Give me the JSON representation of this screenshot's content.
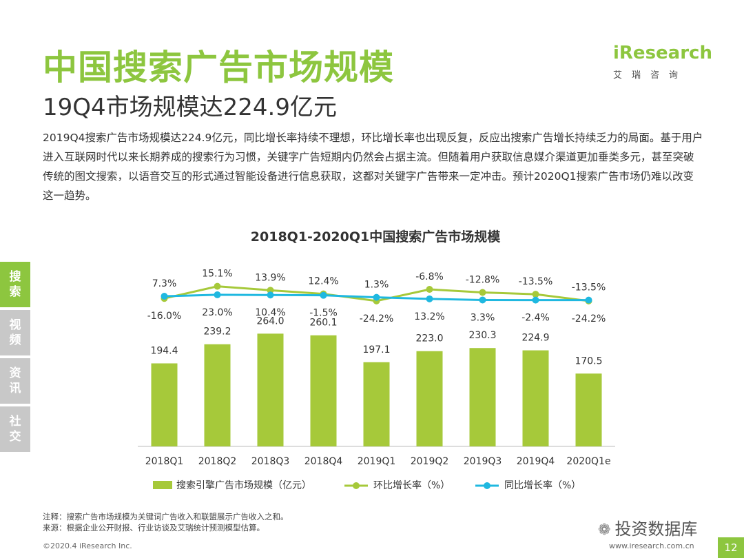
{
  "header": {
    "title": "中国搜索广告市场规模",
    "subtitle": "19Q4市场规模达224.9亿元"
  },
  "logo": {
    "name": "iResearch",
    "sub": "艾瑞咨询"
  },
  "body_text": "2019Q4搜索广告市场规模达224.9亿元，同比增长率持续不理想，环比增长率也出现反复，反应出搜索广告增长持续乏力的局面。基于用户进入互联网时代以来长期养成的搜索行为习惯，关键字广告短期内仍然会占据主流。但随着用户获取信息媒介渠道更加垂类多元，甚至突破传统的图文搜索，以语音交互的形式通过智能设备进行信息获取，这都对关键字广告带来一定冲击。预计2020Q1搜索广告市场仍难以改变这一趋势。",
  "side_nav": [
    {
      "label": "搜索",
      "active": true
    },
    {
      "label": "视频",
      "active": false
    },
    {
      "label": "资讯",
      "active": false
    },
    {
      "label": "社交",
      "active": false
    }
  ],
  "chart_data": {
    "type": "bar",
    "title": "2018Q1-2020Q1中国搜索广告市场规模",
    "categories": [
      "2018Q1",
      "2018Q2",
      "2018Q3",
      "2018Q4",
      "2019Q1",
      "2019Q2",
      "2019Q3",
      "2019Q4",
      "2020Q1e"
    ],
    "series": [
      {
        "name": "搜索引擎广告市场规模（亿元）",
        "type": "bar",
        "values": [
          194.4,
          239.2,
          264.0,
          260.1,
          197.1,
          223.0,
          230.3,
          224.9,
          170.5
        ],
        "labels": [
          "194.4",
          "239.2",
          "264.0",
          "260.1",
          "197.1",
          "223.0",
          "230.3",
          "224.9",
          "170.5"
        ],
        "color": "#a6c93a"
      },
      {
        "name": "环比增长率（%）",
        "type": "line",
        "values": [
          -16.0,
          23.0,
          10.4,
          -1.5,
          -24.2,
          13.2,
          3.3,
          -2.4,
          -24.2
        ],
        "labels": [
          "-16.0%",
          "23.0%",
          "10.4%",
          "-1.5%",
          "-24.2%",
          "13.2%",
          "3.3%",
          "-2.4%",
          "-24.2%"
        ],
        "color": "#a6c93a"
      },
      {
        "name": "同比增长率（%）",
        "type": "line",
        "values": [
          7.3,
          15.1,
          13.9,
          12.4,
          1.3,
          -6.8,
          -12.8,
          -13.5,
          -13.5
        ],
        "labels": [
          "7.3%",
          "15.1%",
          "13.9%",
          "12.4%",
          "1.3%",
          "-6.8%",
          "-12.8%",
          "-13.5%",
          "-13.5%"
        ],
        "color": "#1fb8e0"
      }
    ],
    "legend_placement": "bottom",
    "grid": false
  },
  "notes": {
    "note": "注释：搜索广告市场规模为关键词广告收入和联盟展示广告收入之和。",
    "source": "来源：根据企业公开财报、行业访谈及艾瑞统计预测模型估算。"
  },
  "footer": {
    "copyright": "©2020.4 iResearch Inc.",
    "website": "www.iresearch.com.cn",
    "page": "12"
  },
  "watermark": "投资数据库"
}
